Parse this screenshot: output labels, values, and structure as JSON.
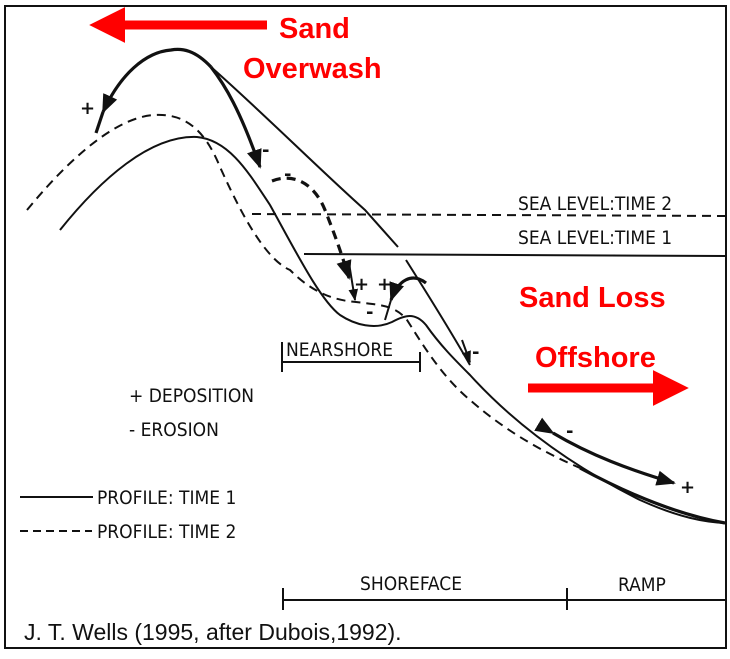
{
  "annotations": {
    "overwash_line1": "Sand",
    "overwash_line2": "Overwash",
    "loss_line1": "Sand Loss",
    "loss_line2": "Offshore",
    "annotation_color": "#ff0000"
  },
  "sea_levels": {
    "time2": "SEA LEVEL:TIME 2",
    "time1": "SEA LEVEL:TIME 1"
  },
  "zones": {
    "nearshore": "NEARSHORE",
    "shoreface": "SHOREFACE",
    "ramp": "RAMP"
  },
  "legend": {
    "deposition": "+ DEPOSITION",
    "erosion": "- EROSION",
    "profile_time1": "PROFILE: TIME 1",
    "profile_time2": "PROFILE: TIME 2"
  },
  "symbols": {
    "plus": "+",
    "minus": "-"
  },
  "caption": "J. T. Wells (1995, after Dubois,1992)."
}
